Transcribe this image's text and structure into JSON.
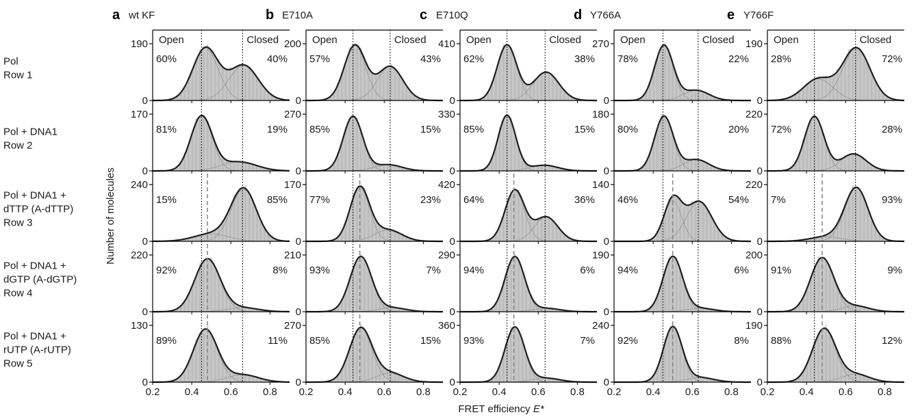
{
  "figure": {
    "xlabel_prefix": "FRET efficiency ",
    "xlabel_var": "E*",
    "ylabel": "Number of molecules",
    "open_label": "Open",
    "closed_label": "Closed"
  },
  "colors": {
    "fill": "#c8c8c8",
    "hist": "#b3b3b3",
    "curve": "#1e1e1e",
    "component": "#7a7a7a",
    "dashed": "#888888",
    "dotted": "#000000",
    "text": "#1a1a1a"
  },
  "rows": [
    {
      "lines": [
        "Pol",
        "Row 1"
      ]
    },
    {
      "lines": [
        "Pol + DNA1",
        "Row 2"
      ]
    },
    {
      "lines": [
        "Pol + DNA1 +",
        "dTTP (A-dTTP)",
        "Row 3"
      ]
    },
    {
      "lines": [
        "Pol + DNA1 +",
        "dGTP (A-dGTP)",
        "Row 4"
      ]
    },
    {
      "lines": [
        "Pol + DNA1 +",
        "rUTP (A-rUTP)",
        "Row 5"
      ]
    }
  ],
  "chart_data": {
    "type": "area",
    "xlim": [
      0.2,
      0.9
    ],
    "x_ticks": [
      "0.2",
      "0.4",
      "0.6",
      "0.8"
    ],
    "x_tick_values": [
      0.2,
      0.4,
      0.6,
      0.8
    ],
    "columns": [
      {
        "letter": "a",
        "name": "wt KF",
        "open_E": 0.45,
        "closed_E": 0.66,
        "rows": [
          {
            "ymax": "190",
            "open_pct": "60%",
            "closed_pct": "40%",
            "peaks": [
              {
                "mu": 0.47,
                "sigma": 0.065,
                "amp": 0.92
              },
              {
                "mu": 0.665,
                "sigma": 0.075,
                "amp": 0.62
              }
            ],
            "dashed_E": null
          },
          {
            "ymax": "170",
            "open_pct": "81%",
            "closed_pct": "19%",
            "peaks": [
              {
                "mu": 0.45,
                "sigma": 0.055,
                "amp": 0.96
              },
              {
                "mu": 0.64,
                "sigma": 0.09,
                "amp": 0.16
              }
            ],
            "dashed_E": null
          },
          {
            "ymax": "240",
            "open_pct": "15%",
            "closed_pct": "85%",
            "peaks": [
              {
                "mu": 0.5,
                "sigma": 0.09,
                "amp": 0.13
              },
              {
                "mu": 0.665,
                "sigma": 0.065,
                "amp": 0.92
              }
            ],
            "dashed_E": 0.48
          },
          {
            "ymax": "220",
            "open_pct": "92%",
            "closed_pct": "8%",
            "peaks": [
              {
                "mu": 0.48,
                "sigma": 0.065,
                "amp": 0.93
              },
              {
                "mu": 0.66,
                "sigma": 0.08,
                "amp": 0.07
              }
            ],
            "dashed_E": 0.48
          },
          {
            "ymax": "130",
            "open_pct": "89%",
            "closed_pct": "11%",
            "peaks": [
              {
                "mu": 0.47,
                "sigma": 0.062,
                "amp": 0.93
              },
              {
                "mu": 0.66,
                "sigma": 0.08,
                "amp": 0.13
              }
            ],
            "dashed_E": 0.48
          }
        ]
      },
      {
        "letter": "b",
        "name": "E710A",
        "open_E": 0.44,
        "closed_E": 0.63,
        "rows": [
          {
            "ymax": "200",
            "open_pct": "57%",
            "closed_pct": "43%",
            "peaks": [
              {
                "mu": 0.45,
                "sigma": 0.055,
                "amp": 0.97
              },
              {
                "mu": 0.63,
                "sigma": 0.065,
                "amp": 0.6
              }
            ],
            "dashed_E": null
          },
          {
            "ymax": "270",
            "open_pct": "85%",
            "closed_pct": "15%",
            "peaks": [
              {
                "mu": 0.44,
                "sigma": 0.05,
                "amp": 0.96
              },
              {
                "mu": 0.62,
                "sigma": 0.07,
                "amp": 0.11
              }
            ],
            "dashed_E": null
          },
          {
            "ymax": "170",
            "open_pct": "77%",
            "closed_pct": "23%",
            "peaks": [
              {
                "mu": 0.475,
                "sigma": 0.05,
                "amp": 0.95
              },
              {
                "mu": 0.62,
                "sigma": 0.07,
                "amp": 0.2
              }
            ],
            "dashed_E": 0.475
          },
          {
            "ymax": "210",
            "open_pct": "93%",
            "closed_pct": "7%",
            "peaks": [
              {
                "mu": 0.48,
                "sigma": 0.055,
                "amp": 0.97
              },
              {
                "mu": 0.64,
                "sigma": 0.07,
                "amp": 0.07
              }
            ],
            "dashed_E": 0.475
          },
          {
            "ymax": "270",
            "open_pct": "85%",
            "closed_pct": "15%",
            "peaks": [
              {
                "mu": 0.48,
                "sigma": 0.058,
                "amp": 0.95
              },
              {
                "mu": 0.63,
                "sigma": 0.07,
                "amp": 0.16
              }
            ],
            "dashed_E": 0.475
          }
        ]
      },
      {
        "letter": "c",
        "name": "E710Q",
        "open_E": 0.44,
        "closed_E": 0.635,
        "rows": [
          {
            "ymax": "410",
            "open_pct": "62%",
            "closed_pct": "38%",
            "peaks": [
              {
                "mu": 0.44,
                "sigma": 0.05,
                "amp": 0.98
              },
              {
                "mu": 0.64,
                "sigma": 0.065,
                "amp": 0.5
              }
            ],
            "dashed_E": null
          },
          {
            "ymax": "330",
            "open_pct": "85%",
            "closed_pct": "15%",
            "peaks": [
              {
                "mu": 0.44,
                "sigma": 0.045,
                "amp": 0.98
              },
              {
                "mu": 0.63,
                "sigma": 0.07,
                "amp": 0.1
              }
            ],
            "dashed_E": null
          },
          {
            "ymax": "420",
            "open_pct": "64%",
            "closed_pct": "36%",
            "peaks": [
              {
                "mu": 0.48,
                "sigma": 0.05,
                "amp": 0.9
              },
              {
                "mu": 0.64,
                "sigma": 0.06,
                "amp": 0.43
              }
            ],
            "dashed_E": 0.475
          },
          {
            "ymax": "290",
            "open_pct": "94%",
            "closed_pct": "6%",
            "peaks": [
              {
                "mu": 0.48,
                "sigma": 0.05,
                "amp": 0.97
              },
              {
                "mu": 0.64,
                "sigma": 0.07,
                "amp": 0.06
              }
            ],
            "dashed_E": 0.475
          },
          {
            "ymax": "360",
            "open_pct": "93%",
            "closed_pct": "7%",
            "peaks": [
              {
                "mu": 0.48,
                "sigma": 0.05,
                "amp": 0.97
              },
              {
                "mu": 0.64,
                "sigma": 0.07,
                "amp": 0.07
              }
            ],
            "dashed_E": 0.475
          }
        ]
      },
      {
        "letter": "d",
        "name": "Y766A",
        "open_E": 0.45,
        "closed_E": 0.63,
        "rows": [
          {
            "ymax": "270",
            "open_pct": "78%",
            "closed_pct": "22%",
            "peaks": [
              {
                "mu": 0.455,
                "sigma": 0.048,
                "amp": 0.97
              },
              {
                "mu": 0.62,
                "sigma": 0.065,
                "amp": 0.18
              }
            ],
            "dashed_E": null
          },
          {
            "ymax": "180",
            "open_pct": "80%",
            "closed_pct": "20%",
            "peaks": [
              {
                "mu": 0.455,
                "sigma": 0.048,
                "amp": 0.96
              },
              {
                "mu": 0.62,
                "sigma": 0.065,
                "amp": 0.2
              }
            ],
            "dashed_E": null
          },
          {
            "ymax": "140",
            "open_pct": "46%",
            "closed_pct": "54%",
            "peaks": [
              {
                "mu": 0.5,
                "sigma": 0.045,
                "amp": 0.72
              },
              {
                "mu": 0.635,
                "sigma": 0.065,
                "amp": 0.7
              }
            ],
            "dashed_E": 0.5
          },
          {
            "ymax": "190",
            "open_pct": "94%",
            "closed_pct": "6%",
            "peaks": [
              {
                "mu": 0.5,
                "sigma": 0.05,
                "amp": 0.97
              },
              {
                "mu": 0.64,
                "sigma": 0.07,
                "amp": 0.06
              }
            ],
            "dashed_E": 0.5
          },
          {
            "ymax": "240",
            "open_pct": "92%",
            "closed_pct": "8%",
            "peaks": [
              {
                "mu": 0.5,
                "sigma": 0.048,
                "amp": 0.97
              },
              {
                "mu": 0.64,
                "sigma": 0.07,
                "amp": 0.08
              }
            ],
            "dashed_E": 0.5
          }
        ]
      },
      {
        "letter": "e",
        "name": "Y766F",
        "open_E": 0.44,
        "closed_E": 0.65,
        "rows": [
          {
            "ymax": "190",
            "open_pct": "28%",
            "closed_pct": "72%",
            "peaks": [
              {
                "mu": 0.46,
                "sigma": 0.075,
                "amp": 0.38
              },
              {
                "mu": 0.655,
                "sigma": 0.07,
                "amp": 0.92
              }
            ],
            "dashed_E": null
          },
          {
            "ymax": "220",
            "open_pct": "72%",
            "closed_pct": "28%",
            "peaks": [
              {
                "mu": 0.44,
                "sigma": 0.05,
                "amp": 0.96
              },
              {
                "mu": 0.64,
                "sigma": 0.065,
                "amp": 0.3
              }
            ],
            "dashed_E": null
          },
          {
            "ymax": "220",
            "open_pct": "7%",
            "closed_pct": "93%",
            "peaks": [
              {
                "mu": 0.5,
                "sigma": 0.08,
                "amp": 0.08
              },
              {
                "mu": 0.655,
                "sigma": 0.06,
                "amp": 0.94
              }
            ],
            "dashed_E": 0.48
          },
          {
            "ymax": "200",
            "open_pct": "91%",
            "closed_pct": "9%",
            "peaks": [
              {
                "mu": 0.48,
                "sigma": 0.06,
                "amp": 0.95
              },
              {
                "mu": 0.65,
                "sigma": 0.07,
                "amp": 0.1
              }
            ],
            "dashed_E": 0.48
          },
          {
            "ymax": "190",
            "open_pct": "88%",
            "closed_pct": "12%",
            "peaks": [
              {
                "mu": 0.49,
                "sigma": 0.06,
                "amp": 0.94
              },
              {
                "mu": 0.65,
                "sigma": 0.07,
                "amp": 0.14
              }
            ],
            "dashed_E": 0.48
          }
        ]
      }
    ]
  }
}
